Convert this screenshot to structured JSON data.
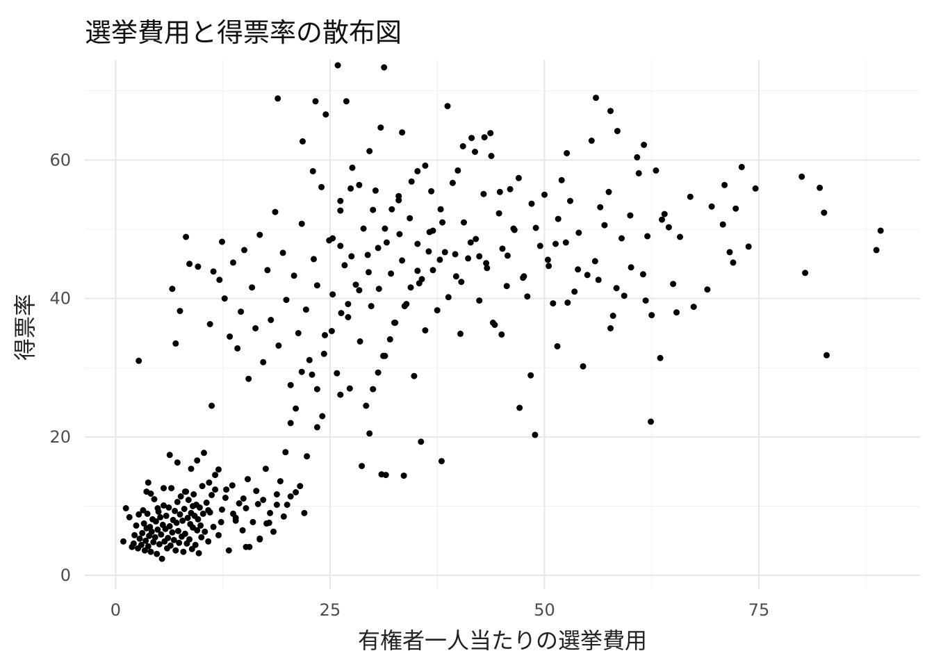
{
  "chart_data": {
    "type": "scatter",
    "title": "選挙費用と得票率の散布図",
    "xlabel": "有権者一人当たりの選挙費用",
    "ylabel": "得票率",
    "xlim": [
      -3.6,
      93.8
    ],
    "ylim": [
      -2,
      74.5
    ],
    "x_ticks": [
      0,
      25,
      50,
      75
    ],
    "y_ticks": [
      0,
      20,
      40,
      60
    ],
    "grid": true,
    "legend": "none",
    "point_color": "#000000",
    "points": [
      [
        0.9,
        4.9
      ],
      [
        1.2,
        9.7
      ],
      [
        1.6,
        8.4
      ],
      [
        1.9,
        4.1
      ],
      [
        2.1,
        4.6
      ],
      [
        2.2,
        5.8
      ],
      [
        2.4,
        7.2
      ],
      [
        2.6,
        3.9
      ],
      [
        2.7,
        8.8
      ],
      [
        2.8,
        5.3
      ],
      [
        3.0,
        4.4
      ],
      [
        3.1,
        6.1
      ],
      [
        3.2,
        9.4
      ],
      [
        3.3,
        7.5
      ],
      [
        3.4,
        3.6
      ],
      [
        3.5,
        5.0
      ],
      [
        3.6,
        6.8
      ],
      [
        3.7,
        8.9
      ],
      [
        3.8,
        4.2
      ],
      [
        3.9,
        5.7
      ],
      [
        4.0,
        7.0
      ],
      [
        4.1,
        3.4
      ],
      [
        4.2,
        6.3
      ],
      [
        4.3,
        8.1
      ],
      [
        4.4,
        4.8
      ],
      [
        4.5,
        11.0
      ],
      [
        4.6,
        5.5
      ],
      [
        4.7,
        7.8
      ],
      [
        4.8,
        3.1
      ],
      [
        4.9,
        6.6
      ],
      [
        5.0,
        9.2
      ],
      [
        5.1,
        4.5
      ],
      [
        5.2,
        8.4
      ],
      [
        5.3,
        5.9
      ],
      [
        5.4,
        2.4
      ],
      [
        5.5,
        7.3
      ],
      [
        5.6,
        10.1
      ],
      [
        5.7,
        4.9
      ],
      [
        5.8,
        6.7
      ],
      [
        5.9,
        8.6
      ],
      [
        6.0,
        3.9
      ],
      [
        6.1,
        5.4
      ],
      [
        6.2,
        9.8
      ],
      [
        6.3,
        7.1
      ],
      [
        6.4,
        4.3
      ],
      [
        6.5,
        12.6
      ],
      [
        6.6,
        6.2
      ],
      [
        6.7,
        8.0
      ],
      [
        6.8,
        5.1
      ],
      [
        6.9,
        9.3
      ],
      [
        7.0,
        3.6
      ],
      [
        7.1,
        7.6
      ],
      [
        7.2,
        10.6
      ],
      [
        7.3,
        6.4
      ],
      [
        7.4,
        4.7
      ],
      [
        7.5,
        8.8
      ],
      [
        7.6,
        11.4
      ],
      [
        7.7,
        5.6
      ],
      [
        7.8,
        7.9
      ],
      [
        7.9,
        3.4
      ],
      [
        8.0,
        9.6
      ],
      [
        8.1,
        6.0
      ],
      [
        8.2,
        12.1
      ],
      [
        8.3,
        4.6
      ],
      [
        8.4,
        8.3
      ],
      [
        8.5,
        10.9
      ],
      [
        8.6,
        5.2
      ],
      [
        8.7,
        7.4
      ],
      [
        8.8,
        9.0
      ],
      [
        8.9,
        3.8
      ],
      [
        9.0,
        6.9
      ],
      [
        9.1,
        11.7
      ],
      [
        9.2,
        8.6
      ],
      [
        9.3,
        4.4
      ],
      [
        9.4,
        10.2
      ],
      [
        9.5,
        6.5
      ],
      [
        9.6,
        8.1
      ],
      [
        9.7,
        3.2
      ],
      [
        9.8,
        9.8
      ],
      [
        9.9,
        7.2
      ],
      [
        10.0,
        5.5
      ],
      [
        10.1,
        12.9
      ],
      [
        10.2,
        8.9
      ],
      [
        10.4,
        6.3
      ],
      [
        10.6,
        10.5
      ],
      [
        10.8,
        4.9
      ],
      [
        11.0,
        9.1
      ],
      [
        11.2,
        11.6
      ],
      [
        11.4,
        7.0
      ],
      [
        11.6,
        12.4
      ],
      [
        12.0,
        5.8
      ],
      [
        12.4,
        9.5
      ],
      [
        12.8,
        11.2
      ],
      [
        13.2,
        3.6
      ],
      [
        13.6,
        13.0
      ],
      [
        14.0,
        8.3
      ],
      [
        14.4,
        10.4
      ],
      [
        14.8,
        6.5
      ],
      [
        15.2,
        9.7
      ],
      [
        15.6,
        4.1
      ],
      [
        16.0,
        7.7
      ],
      [
        16.4,
        12.2
      ],
      [
        16.8,
        5.3
      ],
      [
        17.2,
        10.9
      ],
      [
        17.6,
        7.5
      ],
      [
        18.0,
        9.0
      ],
      [
        18.4,
        6.3
      ],
      [
        18.8,
        11.7
      ],
      [
        19.2,
        13.6
      ],
      [
        19.6,
        8.5
      ],
      [
        20.0,
        10.2
      ],
      [
        21.0,
        12.0
      ],
      [
        22.0,
        9.0
      ],
      [
        2.7,
        31.0
      ],
      [
        6.6,
        41.4
      ],
      [
        7.0,
        33.5
      ],
      [
        7.5,
        38.2
      ],
      [
        8.2,
        48.9
      ],
      [
        8.6,
        45.0
      ],
      [
        9.6,
        44.6
      ],
      [
        10.3,
        17.7
      ],
      [
        11.0,
        36.3
      ],
      [
        11.2,
        24.5
      ],
      [
        11.4,
        43.9
      ],
      [
        12.1,
        42.7
      ],
      [
        12.4,
        48.2
      ],
      [
        12.7,
        40.0
      ],
      [
        13.3,
        34.5
      ],
      [
        13.7,
        45.2
      ],
      [
        14.2,
        32.8
      ],
      [
        14.6,
        38.1
      ],
      [
        15.0,
        47.0
      ],
      [
        15.5,
        28.4
      ],
      [
        15.9,
        41.6
      ],
      [
        16.3,
        35.7
      ],
      [
        16.8,
        49.2
      ],
      [
        17.2,
        30.8
      ],
      [
        17.7,
        44.1
      ],
      [
        18.1,
        36.9
      ],
      [
        18.6,
        52.5
      ],
      [
        19.0,
        33.2
      ],
      [
        19.5,
        46.6
      ],
      [
        19.9,
        39.8
      ],
      [
        20.4,
        27.5
      ],
      [
        20.8,
        43.3
      ],
      [
        21.3,
        35.0
      ],
      [
        21.7,
        50.8
      ],
      [
        22.2,
        38.4
      ],
      [
        22.6,
        31.1
      ],
      [
        23.1,
        45.7
      ],
      [
        23.5,
        41.9
      ],
      [
        24.0,
        56.1
      ],
      [
        24.4,
        34.7
      ],
      [
        24.9,
        48.4
      ],
      [
        25.3,
        40.6
      ],
      [
        25.8,
        29.2
      ],
      [
        26.2,
        52.7
      ],
      [
        26.7,
        44.8
      ],
      [
        27.1,
        37.3
      ],
      [
        27.6,
        58.9
      ],
      [
        28.0,
        42.0
      ],
      [
        28.5,
        33.8
      ],
      [
        28.9,
        50.1
      ],
      [
        29.4,
        46.3
      ],
      [
        29.8,
        38.9
      ],
      [
        30.3,
        55.6
      ],
      [
        30.7,
        41.4
      ],
      [
        31.2,
        31.7
      ],
      [
        31.6,
        48.1
      ],
      [
        32.1,
        43.6
      ],
      [
        32.5,
        36.5
      ],
      [
        33.0,
        54.2
      ],
      [
        33.4,
        45.5
      ],
      [
        33.9,
        39.2
      ],
      [
        34.3,
        51.6
      ],
      [
        34.8,
        28.8
      ],
      [
        35.2,
        47.9
      ],
      [
        35.7,
        42.8
      ],
      [
        36.1,
        35.4
      ],
      [
        36.6,
        49.6
      ],
      [
        37.0,
        44.1
      ],
      [
        37.5,
        38.3
      ],
      [
        37.9,
        52.9
      ],
      [
        38.4,
        46.7
      ],
      [
        38.8,
        40.2
      ],
      [
        39.3,
        56.7
      ],
      [
        39.7,
        43.2
      ],
      [
        40.2,
        34.9
      ],
      [
        40.6,
        51.0
      ],
      [
        41.1,
        45.8
      ],
      [
        41.5,
        63.2
      ],
      [
        42.0,
        48.6
      ],
      [
        42.4,
        39.7
      ],
      [
        42.9,
        55.1
      ],
      [
        43.3,
        44.4
      ],
      [
        43.8,
        60.6
      ],
      [
        44.2,
        36.2
      ],
      [
        44.7,
        52.3
      ],
      [
        45.1,
        47.2
      ],
      [
        45.6,
        41.8
      ],
      [
        46.0,
        55.8
      ],
      [
        46.5,
        49.9
      ],
      [
        47.0,
        57.4
      ],
      [
        47.5,
        43.0
      ],
      [
        48.0,
        40.3
      ],
      [
        48.5,
        53.7
      ],
      [
        49.0,
        50.2
      ],
      [
        49.5,
        47.6
      ],
      [
        50.0,
        55.0
      ],
      [
        50.5,
        44.7
      ],
      [
        51.0,
        39.3
      ],
      [
        51.5,
        33.1
      ],
      [
        52.0,
        57.1
      ],
      [
        52.5,
        48.1
      ],
      [
        53.0,
        54.1
      ],
      [
        53.5,
        41.0
      ],
      [
        54.0,
        49.5
      ],
      [
        54.5,
        30.2
      ],
      [
        55.0,
        43.4
      ],
      [
        55.5,
        62.8
      ],
      [
        56.0,
        69.0
      ],
      [
        56.5,
        53.2
      ],
      [
        57.0,
        50.6
      ],
      [
        57.5,
        55.4
      ],
      [
        58.0,
        37.5
      ],
      [
        58.5,
        64.2
      ],
      [
        59.0,
        48.7
      ],
      [
        60.0,
        52.0
      ],
      [
        61.0,
        58.1
      ],
      [
        61.5,
        43.5
      ],
      [
        62.0,
        49.0
      ],
      [
        62.5,
        37.6
      ],
      [
        63.0,
        58.5
      ],
      [
        63.5,
        31.4
      ],
      [
        64.0,
        52.2
      ],
      [
        65.0,
        42.1
      ],
      [
        65.4,
        38.0
      ],
      [
        67.0,
        54.7
      ],
      [
        69.0,
        41.3
      ],
      [
        69.5,
        53.3
      ],
      [
        71.0,
        56.4
      ],
      [
        71.6,
        46.7
      ],
      [
        72.3,
        53.0
      ],
      [
        73.0,
        59.0
      ],
      [
        73.8,
        47.5
      ],
      [
        74.6,
        55.9
      ],
      [
        80.0,
        57.6
      ],
      [
        80.4,
        43.7
      ],
      [
        82.1,
        56.0
      ],
      [
        82.6,
        52.4
      ],
      [
        82.9,
        31.8
      ],
      [
        88.7,
        47.0
      ],
      [
        89.2,
        49.8
      ],
      [
        60.8,
        60.4
      ],
      [
        61.6,
        62.2
      ],
      [
        51.6,
        51.5
      ],
      [
        48.9,
        20.3
      ],
      [
        47.1,
        24.2
      ],
      [
        52.6,
        61.0
      ],
      [
        57.7,
        67.1
      ],
      [
        38.7,
        67.8
      ],
      [
        35.6,
        19.3
      ],
      [
        38.0,
        16.5
      ],
      [
        33.6,
        14.4
      ],
      [
        31.5,
        14.5
      ],
      [
        31.0,
        14.6
      ],
      [
        28.7,
        15.8
      ],
      [
        29.6,
        20.5
      ],
      [
        26.9,
        68.5
      ],
      [
        25.9,
        73.7
      ],
      [
        31.3,
        73.4
      ],
      [
        18.9,
        68.9
      ],
      [
        23.3,
        68.5
      ],
      [
        24.5,
        66.6
      ],
      [
        25.3,
        48.7
      ],
      [
        26.2,
        47.6
      ],
      [
        27.5,
        46.1
      ],
      [
        30.0,
        52.8
      ],
      [
        33.1,
        49.3
      ],
      [
        35.4,
        42.2
      ],
      [
        37.8,
        45.6
      ],
      [
        39.6,
        46.4
      ],
      [
        40.3,
        42.4
      ],
      [
        21.8,
        62.7
      ],
      [
        23.0,
        58.4
      ],
      [
        29.6,
        61.3
      ],
      [
        30.9,
        64.7
      ],
      [
        33.4,
        64.0
      ],
      [
        28.4,
        56.4
      ],
      [
        27.4,
        55.9
      ],
      [
        26.2,
        54.1
      ],
      [
        36.1,
        59.2
      ],
      [
        36.8,
        55.5
      ],
      [
        41.9,
        61.2
      ],
      [
        43.0,
        63.3
      ],
      [
        43.7,
        63.9
      ],
      [
        40.5,
        62.0
      ],
      [
        39.9,
        58.5
      ],
      [
        38.1,
        51.0
      ],
      [
        37.0,
        49.8
      ],
      [
        36.5,
        46.8
      ],
      [
        35.2,
        44.0
      ],
      [
        34.4,
        41.6
      ],
      [
        33.7,
        38.9
      ],
      [
        32.6,
        36.5
      ],
      [
        32.0,
        34.1
      ],
      [
        31.4,
        31.7
      ],
      [
        30.6,
        29.3
      ],
      [
        30.0,
        26.9
      ],
      [
        29.2,
        24.5
      ],
      [
        27.3,
        27.0
      ],
      [
        26.2,
        26.1
      ],
      [
        24.1,
        23.0
      ],
      [
        23.5,
        21.4
      ],
      [
        22.3,
        17.2
      ],
      [
        21.5,
        12.9
      ],
      [
        20.4,
        11.4
      ],
      [
        18.8,
        10.2
      ],
      [
        17.9,
        7.6
      ],
      [
        16.8,
        5.2
      ],
      [
        15.2,
        4.1
      ],
      [
        14.0,
        7.9
      ],
      [
        12.9,
        12.4
      ],
      [
        12.0,
        15.3
      ],
      [
        11.6,
        14.5
      ],
      [
        10.9,
        13.4
      ],
      [
        9.5,
        16.6
      ],
      [
        8.8,
        15.4
      ],
      [
        8.1,
        12.1
      ],
      [
        7.2,
        16.3
      ],
      [
        6.3,
        17.4
      ],
      [
        5.6,
        12.6
      ],
      [
        4.9,
        9.7
      ],
      [
        4.1,
        11.8
      ],
      [
        3.8,
        13.4
      ],
      [
        3.6,
        12.1
      ],
      [
        9.0,
        10.0
      ],
      [
        10.8,
        9.4
      ],
      [
        12.3,
        7.7
      ],
      [
        13.7,
        8.9
      ],
      [
        14.9,
        11.1
      ],
      [
        15.4,
        13.9
      ],
      [
        16.6,
        10.3
      ],
      [
        17.5,
        15.4
      ],
      [
        19.8,
        17.8
      ],
      [
        20.4,
        22.0
      ],
      [
        21.0,
        24.1
      ],
      [
        21.7,
        29.4
      ],
      [
        22.9,
        29.0
      ],
      [
        23.5,
        26.9
      ],
      [
        24.3,
        32.0
      ],
      [
        25.2,
        35.3
      ],
      [
        26.3,
        37.9
      ],
      [
        27.1,
        39.2
      ],
      [
        28.4,
        41.2
      ],
      [
        29.5,
        43.8
      ],
      [
        30.6,
        47.3
      ],
      [
        31.4,
        50.1
      ],
      [
        32.2,
        52.9
      ],
      [
        33.0,
        54.8
      ],
      [
        34.5,
        56.9
      ],
      [
        35.2,
        58.4
      ],
      [
        44.8,
        55.4
      ],
      [
        45.7,
        46.2
      ],
      [
        46.4,
        50.1
      ],
      [
        47.6,
        43.2
      ],
      [
        48.4,
        28.9
      ],
      [
        50.4,
        45.6
      ],
      [
        51.3,
        47.9
      ],
      [
        52.7,
        39.4
      ],
      [
        53.9,
        44.2
      ],
      [
        55.9,
        45.4
      ],
      [
        56.3,
        42.7
      ],
      [
        57.7,
        35.7
      ],
      [
        58.4,
        41.5
      ],
      [
        59.3,
        40.4
      ],
      [
        60.1,
        44.5
      ],
      [
        61.8,
        39.7
      ],
      [
        62.4,
        22.2
      ],
      [
        63.7,
        51.4
      ],
      [
        64.5,
        50.3
      ],
      [
        65.8,
        48.9
      ],
      [
        67.4,
        38.8
      ],
      [
        70.8,
        50.7
      ],
      [
        72.0,
        45.2
      ],
      [
        41.4,
        48.1
      ],
      [
        42.4,
        46.1
      ],
      [
        43.2,
        45.1
      ],
      [
        44.0,
        36.5
      ],
      [
        45.0,
        34.8
      ]
    ]
  }
}
